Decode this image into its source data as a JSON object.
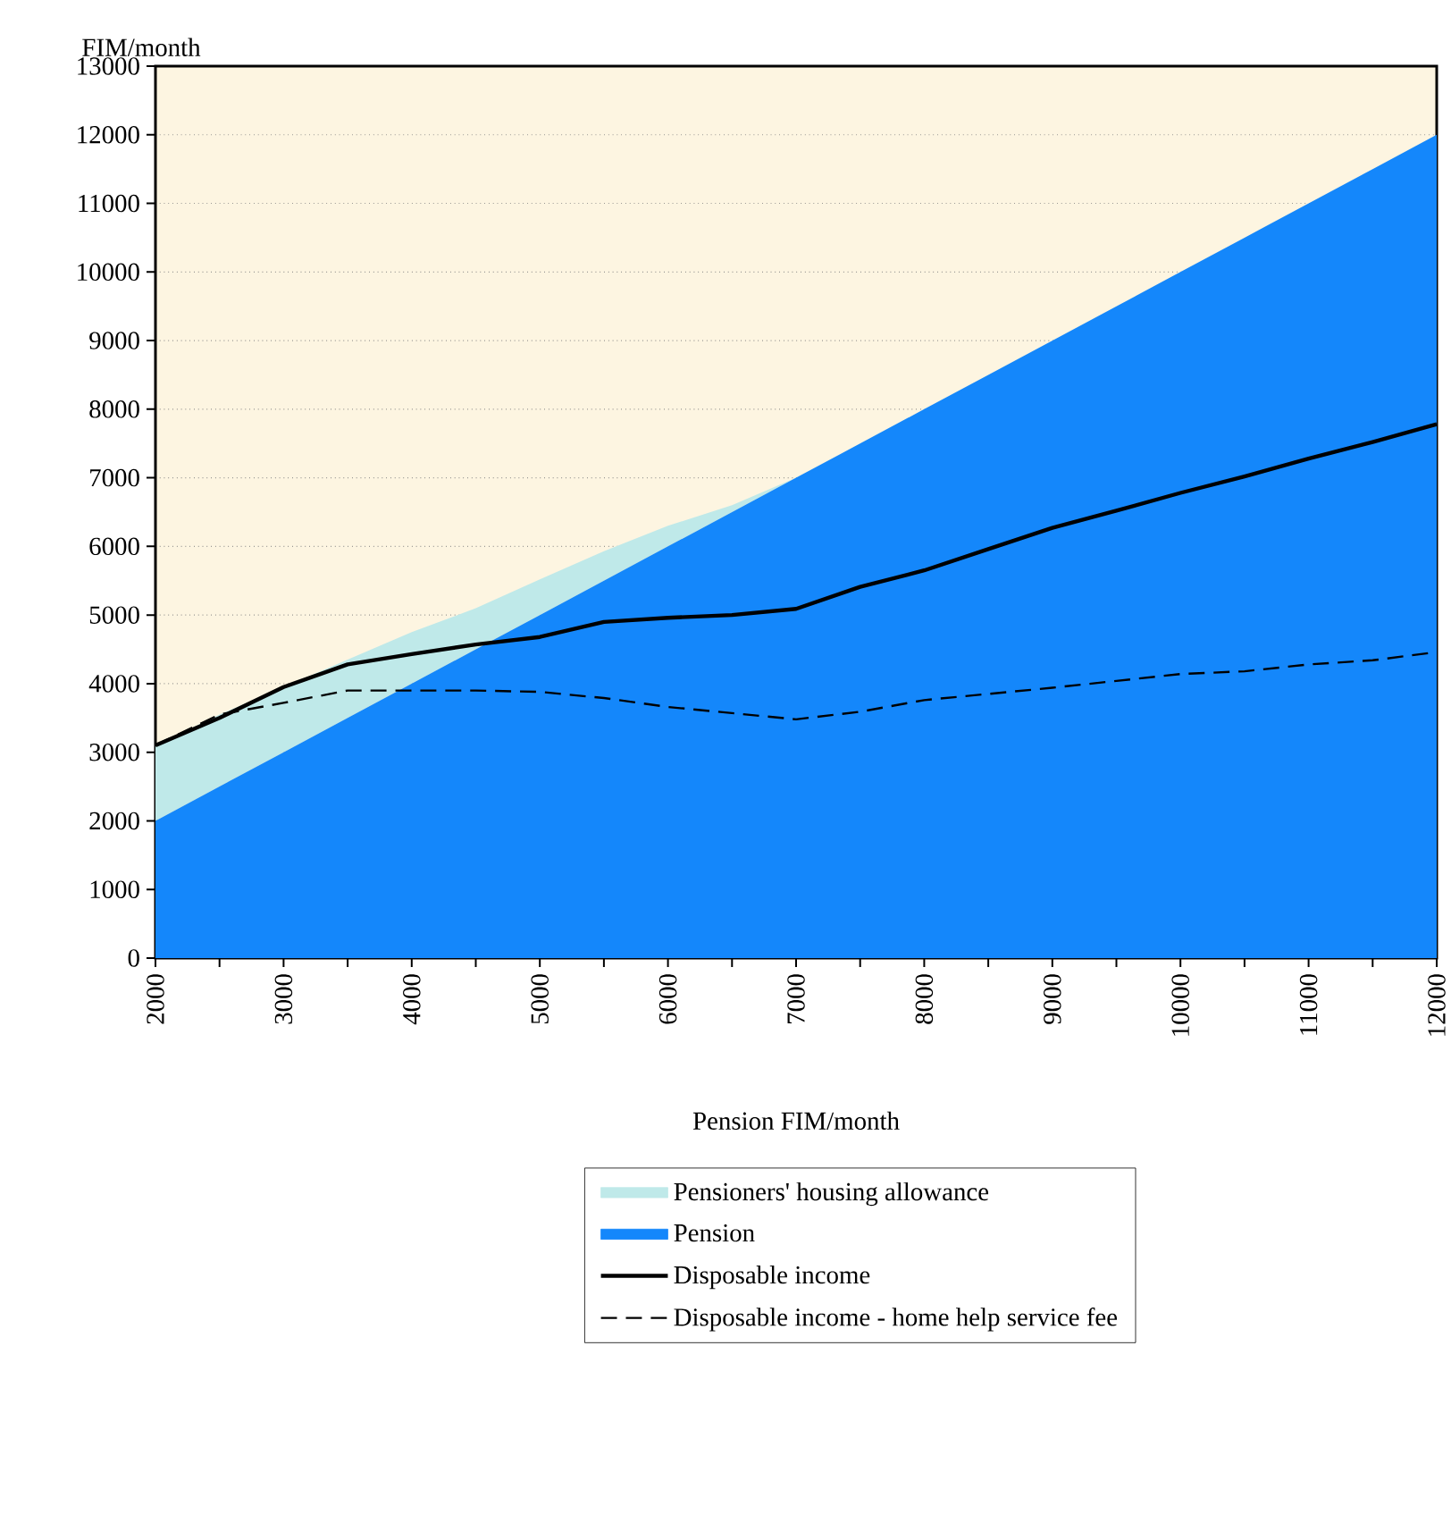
{
  "chart_data": {
    "type": "area",
    "xlabel": "Pension FIM/month",
    "ylabel": "FIM/month",
    "x": [
      2000,
      2500,
      3000,
      3500,
      4000,
      4500,
      5000,
      5500,
      6000,
      6500,
      7000,
      7500,
      8000,
      8500,
      9000,
      9500,
      10000,
      10500,
      11000,
      11500,
      12000
    ],
    "series": [
      {
        "name": "Pension",
        "type": "area",
        "color": "#1487fb",
        "values": [
          2000,
          2500,
          3000,
          3500,
          4000,
          4500,
          5000,
          5500,
          6000,
          6500,
          7000,
          7500,
          8000,
          8500,
          9000,
          9500,
          10000,
          10500,
          11000,
          11500,
          12000
        ]
      },
      {
        "name": "Pensioners' housing allowance",
        "type": "area",
        "color": "#bfe9e9",
        "values": [
          1100,
          1050,
          950,
          850,
          750,
          600,
          520,
          430,
          300,
          100,
          0,
          0,
          0,
          0,
          0,
          0,
          0,
          0,
          0,
          0,
          0
        ]
      },
      {
        "name": "Disposable income",
        "type": "line",
        "color": "#000000",
        "line_style": "solid",
        "values": [
          3100,
          3500,
          3950,
          4280,
          4430,
          4570,
          4680,
          4900,
          4960,
          5000,
          5090,
          5410,
          5650,
          5960,
          6270,
          6520,
          6780,
          7020,
          7280,
          7520,
          7780
        ]
      },
      {
        "name": "Disposable income - home help service fee",
        "type": "line",
        "color": "#000000",
        "line_style": "dashed",
        "values": [
          3100,
          3550,
          3720,
          3900,
          3900,
          3900,
          3880,
          3790,
          3660,
          3570,
          3480,
          3590,
          3760,
          3850,
          3940,
          4040,
          4140,
          4180,
          4280,
          4340,
          4460
        ]
      }
    ],
    "stacked": true,
    "marker": "none",
    "grid": "y",
    "legend": "bottom",
    "xlim": [
      2000,
      12000
    ],
    "xticks": [
      2000,
      {
        "value": 2500,
        "label": null
      },
      3000,
      {
        "value": 3500,
        "label": null
      },
      4000,
      {
        "value": 4500,
        "label": null
      },
      5000,
      {
        "value": 5500,
        "label": null
      },
      6000,
      {
        "value": 6500,
        "label": null
      },
      7000,
      {
        "value": 7500,
        "label": null
      },
      8000,
      {
        "value": 8500,
        "label": null
      },
      9000,
      {
        "value": 9500,
        "label": null
      },
      10000,
      {
        "value": 10500,
        "label": null
      },
      11000,
      {
        "value": 11500,
        "label": null
      },
      12000
    ],
    "ylim": [
      0,
      13000
    ],
    "yticks": [
      0,
      1000,
      2000,
      3000,
      4000,
      5000,
      6000,
      7000,
      8000,
      9000,
      10000,
      11000,
      12000,
      13000
    ]
  }
}
